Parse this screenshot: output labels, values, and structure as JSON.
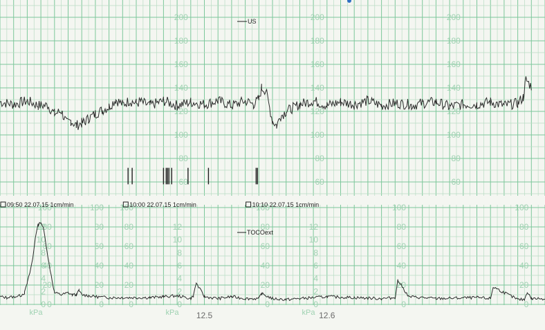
{
  "colors": {
    "paper": "#f4f6f1",
    "grid_minor": "#b8dcc4",
    "grid_major": "#7cc79a",
    "axis_label": "#9fd2b2",
    "trace": "#2a2a2a",
    "print": "#1e1e1e",
    "edge_dot": "#2f6fc4"
  },
  "chart_data": [
    {
      "type": "line",
      "name": "fetal-heart-rate",
      "legend": "US",
      "ylim": [
        50,
        210
      ],
      "yticks": [
        60,
        80,
        100,
        120,
        140,
        160,
        180,
        200
      ],
      "tick_columns_min": [
        14,
        24,
        34
      ],
      "x_unit": "minutes",
      "xlim": [
        0,
        40
      ],
      "series": [
        {
          "x": [
            0,
            1,
            2,
            2.8,
            3.5,
            4,
            4.5,
            4.9,
            5.2,
            5.6,
            6,
            6.2,
            6.5,
            7,
            7.5,
            8,
            8.5,
            9,
            9.5,
            10,
            10.3,
            11,
            12,
            13,
            14,
            15,
            16,
            17,
            18,
            18.6,
            19,
            19.2,
            19.5,
            20,
            20.3,
            20.6,
            21,
            21.5,
            22,
            23,
            24,
            25,
            26,
            27,
            28,
            29,
            30,
            30.2,
            31,
            32,
            33,
            34,
            35,
            36,
            37,
            38,
            38.4,
            38.6,
            39,
            39.5
          ],
          "y": [
            128,
            126,
            129,
            125,
            125,
            118,
            120,
            110,
            112,
            108,
            110,
            111,
            114,
            118,
            121,
            124,
            130,
            126,
            129,
            127,
            128,
            125,
            129,
            125,
            128,
            126,
            129,
            125,
            129,
            126,
            130,
            140,
            138,
            112,
            108,
            116,
            120,
            123,
            126,
            129,
            125,
            128,
            126,
            129,
            125,
            127,
            126,
            125,
            127,
            128,
            124,
            126,
            126,
            128,
            125,
            127,
            132,
            147,
            141,
            null
          ]
        }
      ],
      "markers_min": [
        9.4,
        9.7,
        12.0,
        12.2,
        12.3,
        12.4,
        12.6,
        13.8,
        15.3,
        18.8,
        18.9
      ]
    },
    {
      "type": "line",
      "name": "uterine-activity",
      "legend": "TOCOext",
      "ylim": [
        0,
        100
      ],
      "yticks": [
        0,
        20,
        40,
        60,
        80,
        100
      ],
      "y2_label": "kPa",
      "y2ticks": [
        0,
        2,
        4,
        6,
        8,
        10,
        12
      ],
      "tick_columns_min": [
        0,
        4,
        10,
        20,
        30,
        39
      ],
      "kpa_columns_min": [
        0,
        10,
        20,
        39
      ],
      "xlim": [
        0,
        40
      ],
      "series": [
        {
          "x": [
            0,
            0.5,
            1,
            1.5,
            1.8,
            2,
            2.2,
            2.4,
            2.6,
            2.8,
            3.0,
            3.2,
            3.4,
            3.6,
            4,
            4.5,
            5,
            5.3,
            5.6,
            5.8,
            6,
            6.5,
            7,
            8,
            9,
            10,
            11,
            12,
            13,
            14,
            14.2,
            14.4,
            15,
            16,
            17,
            18,
            19,
            19.2,
            20,
            21,
            22
          ],
          "y": [
            8,
            7,
            8,
            9,
            12,
            22,
            33,
            47,
            70,
            82,
            85,
            78,
            60,
            42,
            12,
            10,
            12,
            10,
            10,
            14,
            10,
            9,
            8,
            7,
            7,
            7,
            7,
            8,
            9,
            6,
            9,
            22,
            8,
            6,
            8,
            6,
            6,
            11,
            6,
            5,
            6
          ]
        }
      ],
      "headers": [
        {
          "at_min": 0,
          "text": "09:50  22.07.15  1cm/min"
        },
        {
          "at_min": 9,
          "text": "10:00  22.07.15  1cm/min"
        },
        {
          "at_min": 18,
          "text": "10:10  22.07.15  1cm/min"
        }
      ],
      "annotations": [
        {
          "at_min": 7.2,
          "text": "12.5"
        },
        {
          "at_min": 16.2,
          "text": "12.6"
        }
      ]
    }
  ]
}
